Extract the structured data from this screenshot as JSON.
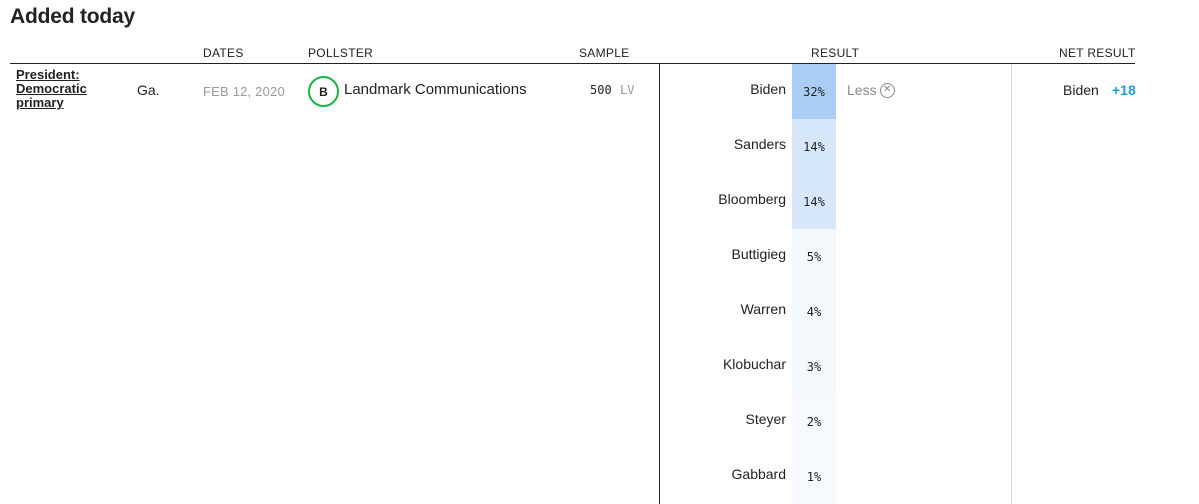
{
  "section": {
    "title": "Added today"
  },
  "columns": {
    "dates": "DATES",
    "pollster": "POLLSTER",
    "sample": "SAMPLE",
    "result": "RESULT",
    "net_result": "NET RESULT"
  },
  "poll": {
    "race": "President: Democratic primary",
    "state": "Ga.",
    "dates": "FEB 12, 2020",
    "grade": "B",
    "pollster": "Landmark Communications",
    "sample_size": "500",
    "sample_type": "LV",
    "less_label": "Less",
    "net_candidate": "Biden",
    "net_value": "+18",
    "results": [
      {
        "candidate": "Biden",
        "pct": "32%",
        "shade": "#a9cdf3"
      },
      {
        "candidate": "Sanders",
        "pct": "14%",
        "shade": "#d6e7fa"
      },
      {
        "candidate": "Bloomberg",
        "pct": "14%",
        "shade": "#d6e7fa"
      },
      {
        "candidate": "Buttigieg",
        "pct": "5%",
        "shade": "#f3f8fd"
      },
      {
        "candidate": "Warren",
        "pct": "4%",
        "shade": "#f3f8fd"
      },
      {
        "candidate": "Klobuchar",
        "pct": "3%",
        "shade": "#f3f8fd"
      },
      {
        "candidate": "Steyer",
        "pct": "2%",
        "shade": "#f6f9fe"
      },
      {
        "candidate": "Gabbard",
        "pct": "1%",
        "shade": "#f6f9fe"
      }
    ]
  },
  "colors": {
    "accent": "#1a9fd9",
    "grade_ring": "#1cb24a"
  }
}
